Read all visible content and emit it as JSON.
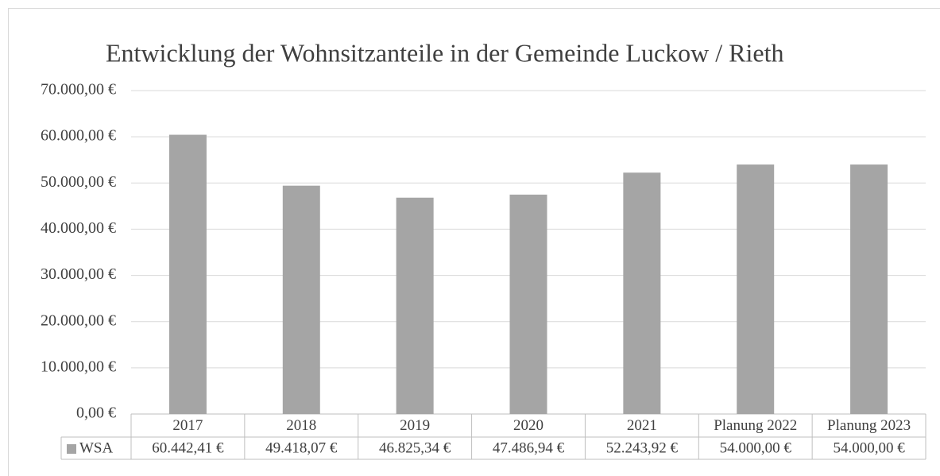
{
  "chart_data": {
    "type": "bar",
    "title": "Entwicklung der Wohnsitzanteile in der Gemeinde Luckow / Rieth",
    "categories": [
      "2017",
      "2018",
      "2019",
      "2020",
      "2021",
      "Planung 2022",
      "Planung 2023"
    ],
    "series": [
      {
        "name": "WSA",
        "color": "#a5a5a5",
        "values": [
          60442.41,
          49418.07,
          46825.34,
          47486.94,
          52243.92,
          54000,
          54000
        ],
        "value_labels": [
          "60.442,41 €",
          "49.418,07 €",
          "46.825,34 €",
          "47.486,94 €",
          "52.243,92 €",
          "54.000,00 €",
          "54.000,00 €"
        ]
      }
    ],
    "ylim": [
      0,
      70000
    ],
    "yticks": [
      {
        "value": 0,
        "label": "0,00 €"
      },
      {
        "value": 10000,
        "label": "10.000,00 €"
      },
      {
        "value": 20000,
        "label": "20.000,00 €"
      },
      {
        "value": 30000,
        "label": "30.000,00 €"
      },
      {
        "value": 40000,
        "label": "40.000,00 €"
      },
      {
        "value": 50000,
        "label": "50.000,00 €"
      },
      {
        "value": 60000,
        "label": "60.000,00 €"
      },
      {
        "value": 70000,
        "label": "70.000,00 €"
      }
    ],
    "grid": true
  }
}
